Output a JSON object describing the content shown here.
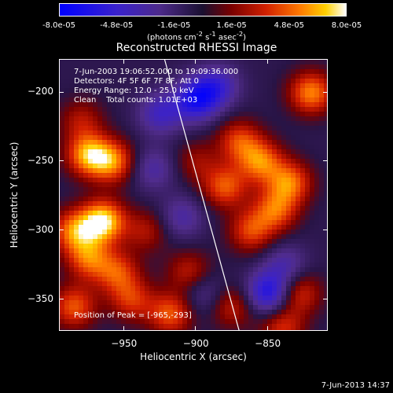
{
  "colorbar": {
    "ticks": [
      "-8.0e-05",
      "-4.8e-05",
      "-1.6e-05",
      "1.6e-05",
      "4.8e-05",
      "8.0e-05"
    ],
    "units_html": "(photons cm<sup>-2</sup> s<sup>-1</sup> asec<sup>-2</sup>)",
    "range": [
      -8e-05,
      8e-05
    ]
  },
  "chart_data": {
    "type": "heatmap",
    "title": "Reconstructed RHESSI Image",
    "xlabel": "Heliocentric X (arcsec)",
    "ylabel": "Heliocentric Y (arcsec)",
    "xlim": [
      -995,
      -808
    ],
    "ylim": [
      -373,
      -176
    ],
    "xticks": [
      -950,
      -900,
      -850
    ],
    "yticks": [
      -200,
      -250,
      -300,
      -350
    ],
    "peak_position": [
      -965,
      -293
    ],
    "annotations": {
      "time_range": "7-Jun-2003 19:06:52.000 to 19:09:36.000",
      "detectors": "Detectors: 4F 5F 6F 7F 8F, Att 0",
      "energy_range": "Energy Range: 12.0 - 25.0 keV",
      "method": "Clean    Total counts: 1.01E+03",
      "peak_text": "Position of Peak = [-965,-293]"
    },
    "limb_curve": [
      [
        -922,
        -176
      ],
      [
        -870,
        -373
      ]
    ],
    "sources": [
      {
        "x": -965,
        "y": -293,
        "amp": 8e-05
      },
      {
        "x": -975,
        "y": -245,
        "amp": 6.5e-05
      },
      {
        "x": -958,
        "y": -250,
        "amp": 5.5e-05
      },
      {
        "x": -980,
        "y": -220,
        "amp": 3e-05
      },
      {
        "x": -985,
        "y": -300,
        "amp": 5.5e-05
      },
      {
        "x": -975,
        "y": -320,
        "amp": 5e-05
      },
      {
        "x": -955,
        "y": -330,
        "amp": 4.5e-05
      },
      {
        "x": -945,
        "y": -350,
        "amp": 4e-05
      },
      {
        "x": -985,
        "y": -355,
        "amp": 5e-05
      },
      {
        "x": -935,
        "y": -300,
        "amp": 3e-05
      },
      {
        "x": -918,
        "y": -360,
        "amp": 5e-05
      },
      {
        "x": -905,
        "y": -330,
        "amp": 3.5e-05
      },
      {
        "x": -880,
        "y": -268,
        "amp": 5e-05
      },
      {
        "x": -870,
        "y": -235,
        "amp": 4.5e-05
      },
      {
        "x": -855,
        "y": -250,
        "amp": 5.5e-05
      },
      {
        "x": -845,
        "y": -285,
        "amp": 5e-05
      },
      {
        "x": -862,
        "y": -300,
        "amp": 4.5e-05
      },
      {
        "x": -835,
        "y": -265,
        "amp": 5.5e-05
      },
      {
        "x": -820,
        "y": -200,
        "amp": 6e-05
      },
      {
        "x": -828,
        "y": -345,
        "amp": 4e-05
      },
      {
        "x": -840,
        "y": -370,
        "amp": 4e-05
      },
      {
        "x": -875,
        "y": -355,
        "amp": 3.5e-05
      },
      {
        "x": -900,
        "y": -250,
        "amp": 2.5e-05
      },
      {
        "x": -900,
        "y": -205,
        "amp": -6e-05
      },
      {
        "x": -925,
        "y": -215,
        "amp": -4e-05
      },
      {
        "x": -885,
        "y": -195,
        "amp": -4e-05
      },
      {
        "x": -850,
        "y": -345,
        "amp": -6e-05
      },
      {
        "x": -930,
        "y": -255,
        "amp": -3e-05
      },
      {
        "x": -910,
        "y": -290,
        "amp": -3e-05
      },
      {
        "x": -895,
        "y": -345,
        "amp": -2.5e-05
      },
      {
        "x": -838,
        "y": -325,
        "amp": -3e-05
      }
    ]
  },
  "timestamp": "7-Jun-2013 14:37"
}
